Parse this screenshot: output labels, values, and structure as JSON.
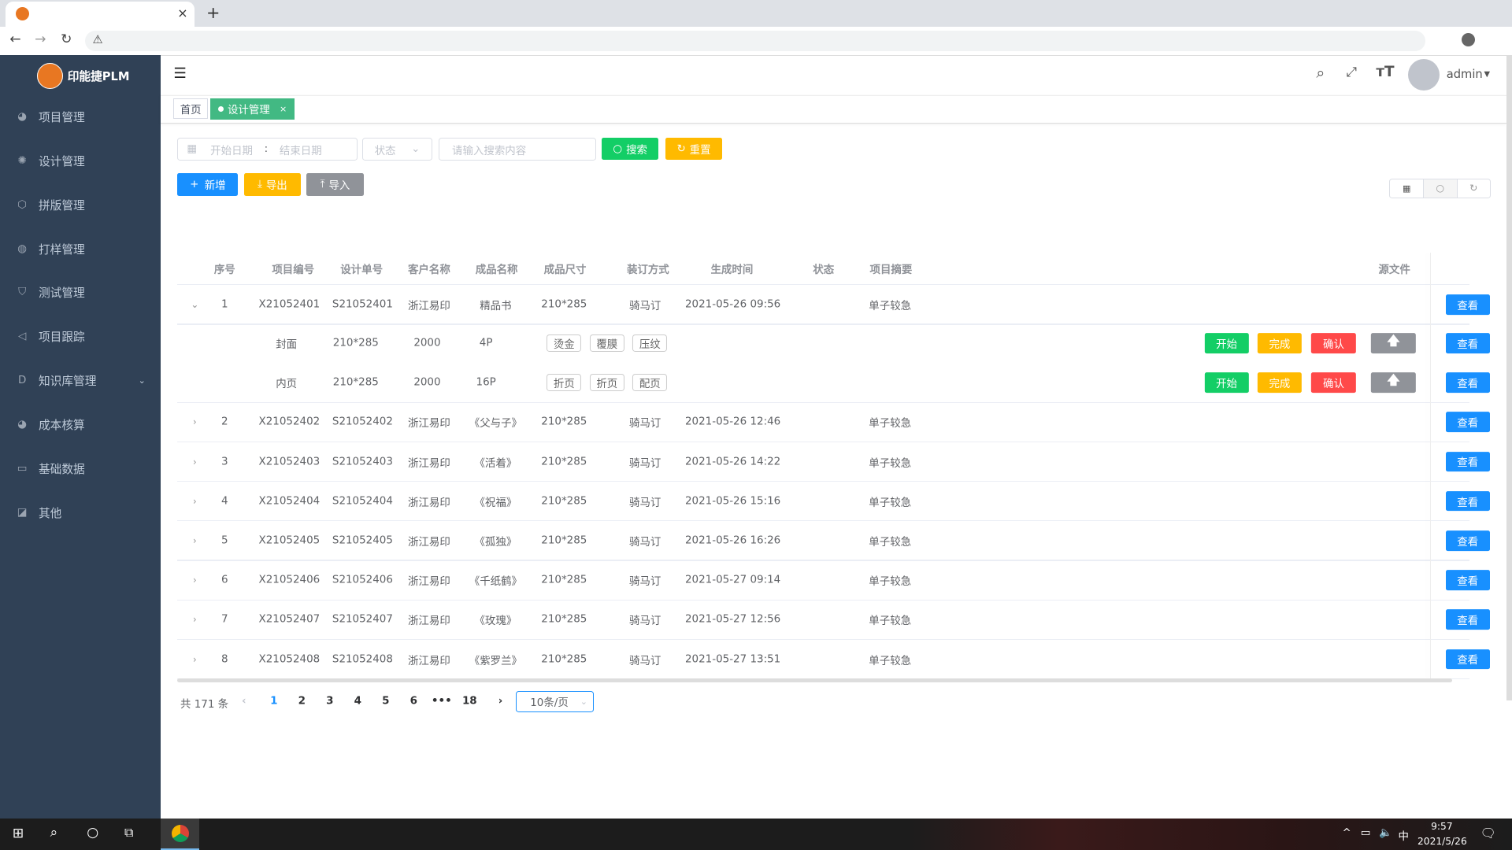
{
  "browser": {
    "tab_close": "×",
    "new_tab": "+",
    "back": "←",
    "forward": "→",
    "reload": "↻",
    "warning": "⚠"
  },
  "app": {
    "logo_text": "印能捷PLM"
  },
  "sidebar": {
    "items": [
      {
        "label": "项目管理",
        "icon": "dashboard-icon"
      },
      {
        "label": "设计管理",
        "icon": "gear-icon"
      },
      {
        "label": "拼版管理",
        "icon": "cube-icon"
      },
      {
        "label": "打样管理",
        "icon": "palette-icon"
      },
      {
        "label": "测试管理",
        "icon": "shield-icon"
      },
      {
        "label": "项目跟踪",
        "icon": "send-icon"
      },
      {
        "label": "知识库管理",
        "icon": "d-icon",
        "has_submenu": true
      },
      {
        "label": "成本核算",
        "icon": "dashboard-icon"
      },
      {
        "label": "基础数据",
        "icon": "monitor-icon"
      },
      {
        "label": "其他",
        "icon": "chart-icon"
      }
    ]
  },
  "header": {
    "user": "admin"
  },
  "tags": {
    "home": "首页",
    "active": "设计管理",
    "close": "×",
    "active_color": "#42b983"
  },
  "filters": {
    "start_placeholder": "开始日期",
    "sep": ":",
    "end_placeholder": "结束日期",
    "status_placeholder": "状态",
    "search_placeholder": "请输入搜索内容",
    "search_btn": "搜索",
    "reset_btn": "重置"
  },
  "toolbar": {
    "add": "新增",
    "export": "导出",
    "import": "导入"
  },
  "table": {
    "headers": [
      "序号",
      "项目编号",
      "设计单号",
      "客户名称",
      "成品名称",
      "成品尺寸",
      "装订方式",
      "生成时间",
      "状态",
      "项目摘要",
      "源文件"
    ],
    "view_label": "查看",
    "rows": [
      {
        "no": "1",
        "project": "X21052401",
        "design": "S21052401",
        "customer": "浙江易印",
        "product": "精品书",
        "size": "210*285",
        "binding": "骑马订",
        "time": "2021-05-26 09:56",
        "status": "",
        "summary": "单子较急",
        "expanded": true
      },
      {
        "no": "2",
        "project": "X21052402",
        "design": "S21052402",
        "customer": "浙江易印",
        "product": "《父与子》",
        "size": "210*285",
        "binding": "骑马订",
        "time": "2021-05-26 12:46",
        "status": "",
        "summary": "单子较急"
      },
      {
        "no": "3",
        "project": "X21052403",
        "design": "S21052403",
        "customer": "浙江易印",
        "product": "《活着》",
        "size": "210*285",
        "binding": "骑马订",
        "time": "2021-05-26 14:22",
        "status": "",
        "summary": "单子较急"
      },
      {
        "no": "4",
        "project": "X21052404",
        "design": "S21052404",
        "customer": "浙江易印",
        "product": "《祝福》",
        "size": "210*285",
        "binding": "骑马订",
        "time": "2021-05-26 15:16",
        "status": "",
        "summary": "单子较急"
      },
      {
        "no": "5",
        "project": "X21052405",
        "design": "S21052405",
        "customer": "浙江易印",
        "product": "《孤独》",
        "size": "210*285",
        "binding": "骑马订",
        "time": "2021-05-26 16:26",
        "status": "",
        "summary": "单子较急"
      },
      {
        "no": "6",
        "project": "X21052406",
        "design": "S21052406",
        "customer": "浙江易印",
        "product": "《千纸鹤》",
        "size": "210*285",
        "binding": "骑马订",
        "time": "2021-05-27 09:14",
        "status": "",
        "summary": "单子较急"
      },
      {
        "no": "7",
        "project": "X21052407",
        "design": "S21052407",
        "customer": "浙江易印",
        "product": "《玫瑰》",
        "size": "210*285",
        "binding": "骑马订",
        "time": "2021-05-27 12:56",
        "status": "",
        "summary": "单子较急"
      },
      {
        "no": "8",
        "project": "X21052408",
        "design": "S21052408",
        "customer": "浙江易印",
        "product": "《紫罗兰》",
        "size": "210*285",
        "binding": "骑马订",
        "time": "2021-05-27 13:51",
        "status": "",
        "summary": "单子较急"
      }
    ],
    "subrows": [
      {
        "part": "封面",
        "size": "210*285",
        "qty": "2000",
        "pages": "4P",
        "processes": [
          "烫金",
          "覆膜",
          "压纹"
        ]
      },
      {
        "part": "内页",
        "size": "210*285",
        "qty": "2000",
        "pages": "16P",
        "processes": [
          "折页",
          "折页",
          "配页"
        ]
      }
    ],
    "actions": [
      {
        "label": "开始",
        "color": "#13ce66"
      },
      {
        "label": "完成",
        "color": "#ffba00"
      },
      {
        "label": "确认",
        "color": "#ff4949"
      },
      {
        "label": "",
        "icon": "upload-arrow-icon",
        "color": "#909399"
      }
    ]
  },
  "pagination": {
    "total": "共 171 条",
    "pages": [
      "1",
      "2",
      "3",
      "4",
      "5",
      "6",
      "•••",
      "18"
    ],
    "current": "1",
    "page_size": "10条/页"
  },
  "taskbar": {
    "time": "9:57",
    "date": "2021/5/26",
    "ime": "中"
  }
}
